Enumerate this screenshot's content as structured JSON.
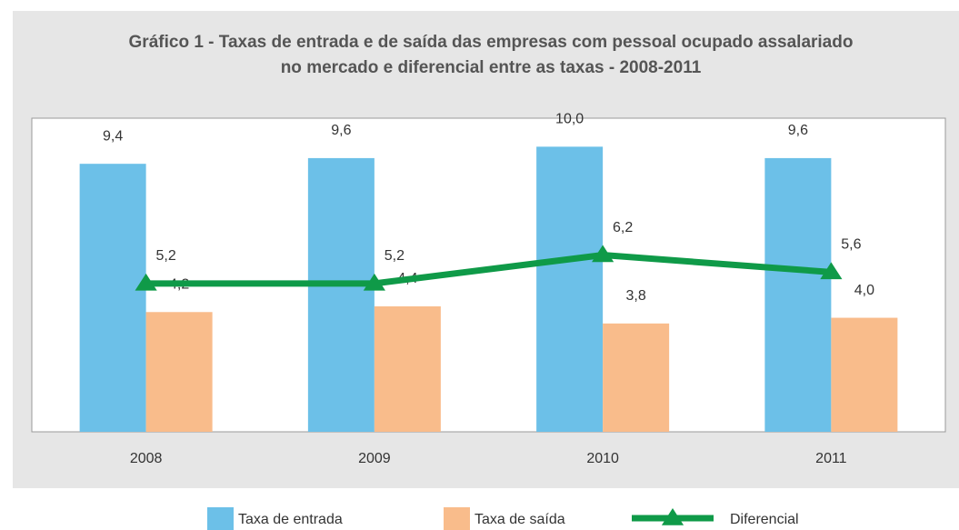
{
  "chart_data": {
    "type": "bar",
    "title": "Gráfico 1 - Taxas de entrada e de saída das empresas com pessoal ocupado assalariado",
    "subtitle": "no mercado e diferencial entre as taxas - 2008-2011",
    "categories": [
      "2008",
      "2009",
      "2010",
      "2011"
    ],
    "ylim": [
      0,
      11
    ],
    "series": [
      {
        "name": "Taxa de entrada",
        "type": "bar",
        "color": "#6cc0e8",
        "values": [
          9.4,
          9.6,
          10.0,
          9.6
        ],
        "value_labels": [
          "9,4",
          "9,6",
          "10,0",
          "9,6"
        ]
      },
      {
        "name": "Taxa de saída",
        "type": "bar",
        "color": "#f9bc8b",
        "values": [
          4.2,
          4.4,
          3.8,
          4.0
        ],
        "value_labels": [
          "4,2",
          "4,4",
          "3,8",
          "4,0"
        ]
      },
      {
        "name": "Diferencial",
        "type": "line",
        "color": "#0f9a48",
        "values": [
          5.2,
          5.2,
          6.2,
          5.6
        ],
        "value_labels": [
          "5,2",
          "5,2",
          "6,2",
          "5,6"
        ]
      }
    ],
    "legend": "bottom"
  }
}
